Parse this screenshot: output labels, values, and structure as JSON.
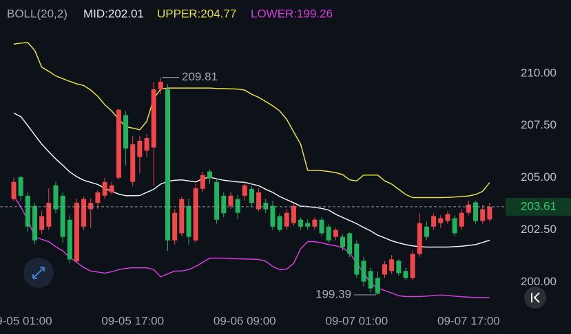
{
  "chart_data": {
    "type": "candlestick",
    "indicator": "BOLL(20,2)",
    "categories": [
      null,
      "09-05 01:00",
      null,
      null,
      null,
      null,
      null,
      null,
      null,
      null,
      null,
      null,
      null,
      null,
      null,
      null,
      null,
      "09-05 17:00",
      null,
      null,
      null,
      null,
      null,
      null,
      null,
      null,
      null,
      null,
      null,
      null,
      null,
      null,
      null,
      "09-06 09:00",
      null,
      null,
      null,
      null,
      null,
      null,
      null,
      null,
      null,
      null,
      null,
      null,
      null,
      null,
      null,
      "09-07 01:00",
      null,
      null,
      null,
      null,
      null,
      null,
      null,
      null,
      null,
      null,
      null,
      null,
      null,
      null,
      null,
      "09-07 17:00",
      null,
      null,
      null
    ],
    "open": [
      203.98,
      205.03,
      204.14,
      203.65,
      202.5,
      202.66,
      204.64,
      204.14,
      202.99,
      201.0,
      202.66,
      203.49,
      203.8,
      204.14,
      204.3,
      205.0,
      208.0,
      204.8,
      206.0,
      206.3,
      206.45,
      209.24,
      209.24,
      202.0,
      202.34,
      203.65,
      202.0,
      204.47,
      205.3,
      204.8,
      204.14,
      203.65,
      203.98,
      204.14,
      204.47,
      203.49,
      203.8,
      203.65,
      203.16,
      202.66,
      202.83,
      202.99,
      202.83,
      202.66,
      202.99,
      202.66,
      202.17,
      202.17,
      202.34,
      201.84,
      201.02,
      200.53,
      200.2,
      200.36,
      200.53,
      201.02,
      200.53,
      200.2,
      201.35,
      202.66,
      202.66,
      202.83,
      202.93,
      203.06,
      202.66,
      203.32,
      203.82,
      202.93,
      203.0
    ],
    "high": [
      205.0,
      205.1,
      204.3,
      203.8,
      203.4,
      204.5,
      204.8,
      204.3,
      203.2,
      204.0,
      204.1,
      204.0,
      204.4,
      205.0,
      204.8,
      208.3,
      208.2,
      207.0,
      207.0,
      207.1,
      209.6,
      209.81,
      209.5,
      203.5,
      204.1,
      204.0,
      204.7,
      205.3,
      205.4,
      205.0,
      204.3,
      204.3,
      204.2,
      204.8,
      204.6,
      204.5,
      204.0,
      203.9,
      203.3,
      203.5,
      203.8,
      203.1,
      203.0,
      203.1,
      203.1,
      202.8,
      202.6,
      202.3,
      202.4,
      202.0,
      201.2,
      200.7,
      200.5,
      201.0,
      201.3,
      201.1,
      200.7,
      201.5,
      203.3,
      202.9,
      203.3,
      203.2,
      203.4,
      203.2,
      203.5,
      203.9,
      203.9,
      203.7,
      203.8
    ],
    "low": [
      203.9,
      203.9,
      202.4,
      201.8,
      202.3,
      202.5,
      203.3,
      201.9,
      200.9,
      200.9,
      202.5,
      202.6,
      203.5,
      204.0,
      204.2,
      204.9,
      205.6,
      204.6,
      205.2,
      206.0,
      204.6,
      209.0,
      201.5,
      201.8,
      202.2,
      201.8,
      201.9,
      204.3,
      204.7,
      202.8,
      203.1,
      203.5,
      203.0,
      203.9,
      203.6,
      203.4,
      203.3,
      202.5,
      202.4,
      202.5,
      202.7,
      202.5,
      202.5,
      202.5,
      202.2,
      201.9,
      202.0,
      201.5,
      201.2,
      200.2,
      199.8,
      199.5,
      199.39,
      200.2,
      200.4,
      200.3,
      200.1,
      200.1,
      201.2,
      202.0,
      202.5,
      202.6,
      202.8,
      202.2,
      202.5,
      203.2,
      202.8,
      202.8,
      202.9
    ],
    "close": [
      204.8,
      204.14,
      202.66,
      202.0,
      203.16,
      203.8,
      203.49,
      202.17,
      201.09,
      203.8,
      203.98,
      203.8,
      204.3,
      204.8,
      204.64,
      208.26,
      206.4,
      206.6,
      206.77,
      206.9,
      209.24,
      209.6,
      202.0,
      203.32,
      203.98,
      202.17,
      204.5,
      205.13,
      204.97,
      202.99,
      203.3,
      204.14,
      203.32,
      204.64,
      203.8,
      204.3,
      203.49,
      202.66,
      202.5,
      203.32,
      203.65,
      202.66,
      202.66,
      202.99,
      202.34,
      202.0,
      202.5,
      201.68,
      201.35,
      200.36,
      200.03,
      199.7,
      199.45,
      200.86,
      201.09,
      200.43,
      200.2,
      201.35,
      202.83,
      202.17,
      203.16,
      203.06,
      203.26,
      202.34,
      203.32,
      203.72,
      202.93,
      203.49,
      203.61
    ],
    "up_color": "#f0474b",
    "down_color": "#22b35e",
    "series": [
      {
        "name": "MID:202.01",
        "color": "#f2f2f2",
        "values": [
          208.1,
          207.93,
          207.5,
          207.05,
          206.61,
          206.25,
          205.9,
          205.6,
          205.28,
          205.05,
          204.88,
          204.78,
          204.68,
          204.5,
          204.35,
          204.22,
          204.14,
          204.14,
          204.15,
          204.3,
          204.45,
          204.7,
          204.82,
          204.88,
          204.9,
          204.85,
          204.8,
          204.95,
          205.03,
          204.95,
          204.88,
          204.84,
          204.8,
          204.78,
          204.7,
          204.62,
          204.45,
          204.3,
          204.1,
          203.95,
          203.8,
          203.64,
          203.62,
          203.58,
          203.53,
          203.45,
          203.25,
          203.1,
          202.95,
          202.8,
          202.62,
          202.45,
          202.25,
          202.12,
          201.98,
          201.88,
          201.8,
          201.74,
          201.7,
          201.68,
          201.68,
          201.68,
          201.68,
          201.7,
          201.72,
          201.76,
          201.8,
          201.9,
          202.01
        ]
      },
      {
        "name": "UPPER:204.77",
        "color": "#e6df48",
        "values": [
          211.4,
          211.45,
          211.48,
          211.1,
          210.3,
          210.1,
          209.88,
          209.75,
          209.62,
          209.5,
          209.42,
          209.2,
          208.9,
          208.5,
          208.2,
          207.8,
          207.45,
          207.38,
          207.3,
          207.7,
          208.8,
          209.25,
          209.3,
          209.3,
          209.3,
          209.3,
          209.3,
          209.3,
          209.3,
          209.28,
          209.27,
          209.26,
          209.25,
          209.2,
          209.0,
          208.85,
          208.65,
          208.45,
          208.2,
          207.8,
          207.2,
          206.6,
          205.36,
          205.36,
          205.34,
          205.3,
          205.25,
          205.15,
          204.9,
          204.85,
          205.13,
          205.13,
          205.13,
          204.85,
          204.7,
          204.45,
          204.2,
          204.05,
          204.05,
          204.05,
          204.05,
          204.05,
          204.06,
          204.08,
          204.1,
          204.13,
          204.2,
          204.35,
          204.77
        ]
      },
      {
        "name": "LOWER:199.26",
        "color": "#d93ce0",
        "values": [
          204.14,
          203.6,
          202.99,
          202.17,
          202.05,
          201.94,
          201.7,
          201.5,
          201.18,
          200.95,
          200.7,
          200.53,
          200.48,
          200.43,
          200.5,
          200.6,
          200.66,
          200.69,
          200.69,
          200.69,
          200.6,
          200.25,
          200.4,
          200.53,
          200.53,
          200.6,
          200.75,
          200.95,
          201.15,
          201.15,
          201.15,
          201.13,
          201.12,
          201.11,
          201.1,
          201.09,
          201.0,
          200.75,
          200.6,
          200.62,
          200.9,
          201.6,
          201.94,
          201.94,
          201.88,
          201.8,
          201.74,
          201.65,
          201.4,
          200.9,
          200.45,
          199.95,
          199.7,
          199.6,
          199.48,
          199.35,
          199.31,
          199.31,
          199.31,
          199.33,
          199.36,
          199.38,
          199.36,
          199.33,
          199.3,
          199.28,
          199.27,
          199.27,
          199.26
        ]
      }
    ],
    "ylim": [
      198.7,
      212.2
    ],
    "yticks": [
      {
        "value": 200,
        "label": "200.00"
      },
      {
        "value": 202.5,
        "label": "202.50"
      },
      {
        "value": 205,
        "label": "205.00"
      },
      {
        "value": 207.5,
        "label": "207.50"
      },
      {
        "value": 210,
        "label": "210.00"
      }
    ],
    "last_price": 203.61,
    "max_annotation": 209.81,
    "min_annotation": 199.39
  }
}
